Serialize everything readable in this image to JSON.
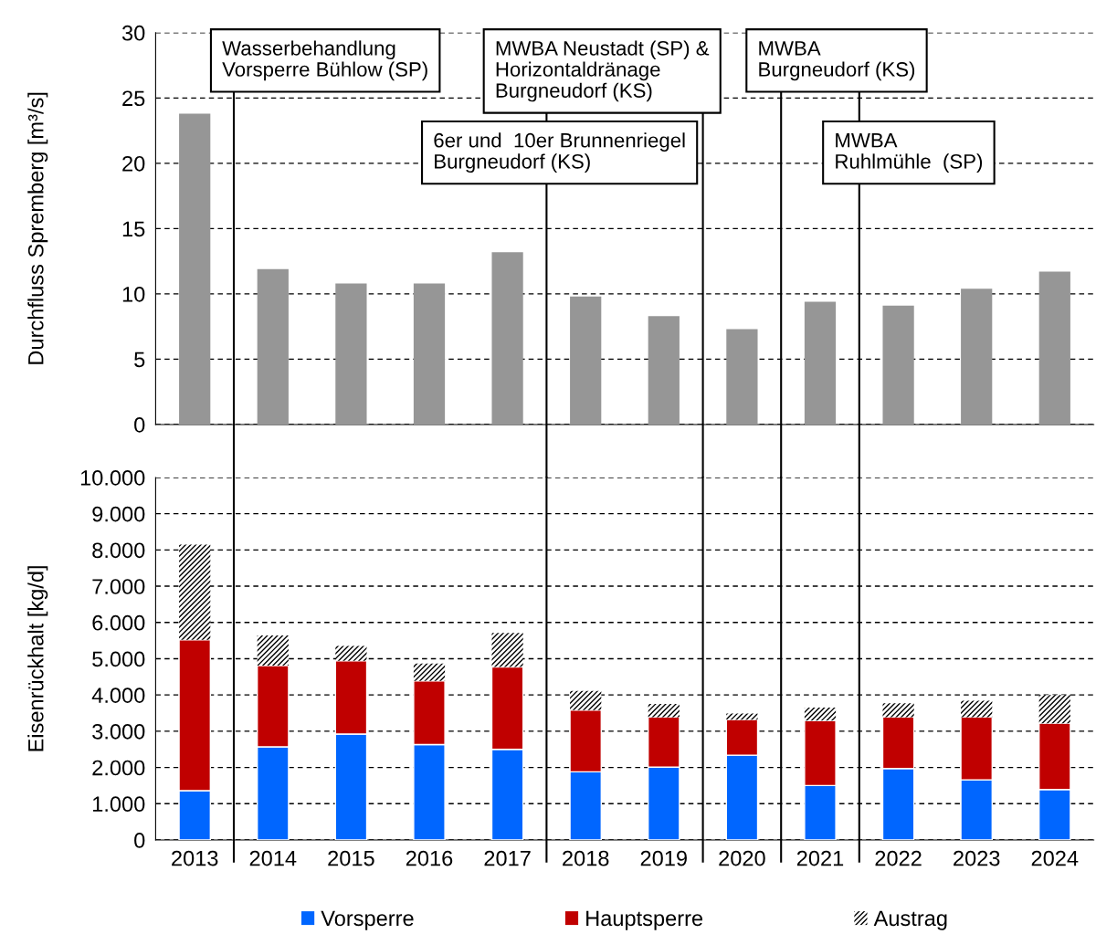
{
  "chart_data": [
    {
      "type": "bar",
      "ylabel": "Durchfluss Spremberg [m³/s]",
      "x": [
        2013,
        2014,
        2015,
        2016,
        2017,
        2018,
        2019,
        2020,
        2021,
        2022,
        2023,
        2024
      ],
      "xlim": [
        2012.5,
        2024.5
      ],
      "xticks": [
        2013,
        2014,
        2015,
        2016,
        2017,
        2018,
        2019,
        2020,
        2021,
        2022,
        2023,
        2024
      ],
      "values": [
        23.8,
        11.9,
        10.8,
        10.8,
        13.2,
        9.8,
        8.3,
        7.3,
        9.4,
        9.1,
        10.4,
        11.7
      ],
      "color": "#969696",
      "ylim": [
        0,
        30
      ],
      "yticks": [
        0,
        5,
        10,
        15,
        20,
        25,
        30
      ],
      "grid": "y",
      "tick_labels": "y",
      "ref_lines": [
        {
          "axis": "x",
          "value": 2013.5,
          "label": "Wasserbehandlung\nVorsperre Bühlow (SP)",
          "color": "#000000"
        },
        {
          "axis": "x",
          "value": 2017.5,
          "label": "6er und  10er Brunnenriegel\nBurgneudorf (KS)",
          "color": "#000000"
        },
        {
          "axis": "x",
          "value": 2019.5,
          "label": "MWBA Neustadt (SP) &\nHorizontaldränage\nBurgneudorf (KS)",
          "color": "#000000"
        },
        {
          "axis": "x",
          "value": 2020.5,
          "label": "MWBA\nBurgneudorf (KS)",
          "color": "#000000"
        },
        {
          "axis": "x",
          "value": 2021.5,
          "label": "MWBA\nRuhlmühle  (SP)",
          "color": "#000000"
        }
      ]
    },
    {
      "type": "bar",
      "stacked": true,
      "ylabel": "Eisenrückhalt [kg/d]",
      "x": [
        2013,
        2014,
        2015,
        2016,
        2017,
        2018,
        2019,
        2020,
        2021,
        2022,
        2023,
        2024
      ],
      "xlim": [
        2012.5,
        2024.5
      ],
      "xticks": [
        2013,
        2014,
        2015,
        2016,
        2017,
        2018,
        2019,
        2020,
        2021,
        2022,
        2023,
        2024
      ],
      "series": [
        {
          "name": "Vorsperre",
          "color": "#0066ff",
          "values": [
            1360,
            2570,
            2920,
            2630,
            2500,
            1880,
            2010,
            2340,
            1500,
            1970,
            1660,
            1390
          ]
        },
        {
          "name": "Hauptsperre",
          "color": "#c00000",
          "values": [
            4160,
            2240,
            2020,
            1760,
            2270,
            1700,
            1380,
            980,
            1790,
            1420,
            1730,
            1830
          ]
        },
        {
          "name": "Austrag",
          "color": "#000000",
          "values": [
            2630,
            830,
            410,
            480,
            940,
            530,
            360,
            170,
            360,
            380,
            450,
            780
          ]
        }
      ],
      "ylim": [
        0,
        10000
      ],
      "yticks": [
        0,
        {
          "value": 1000,
          "label": "1.000"
        },
        {
          "value": 2000,
          "label": "2.000"
        },
        {
          "value": 3000,
          "label": "3.000"
        },
        {
          "value": 4000,
          "label": "4.000"
        },
        {
          "value": 5000,
          "label": "5.000"
        },
        {
          "value": 6000,
          "label": "6.000"
        },
        {
          "value": 7000,
          "label": "7.000"
        },
        {
          "value": 8000,
          "label": "8.000"
        },
        {
          "value": 9000,
          "label": "9.000"
        },
        {
          "value": 10000,
          "label": "10.000"
        }
      ],
      "grid": "y",
      "legend": "bottom",
      "ref_lines": [
        {
          "axis": "x",
          "value": 2013.5,
          "color": "#000000"
        },
        {
          "axis": "x",
          "value": 2017.5,
          "color": "#000000"
        },
        {
          "axis": "x",
          "value": 2019.5,
          "color": "#000000"
        },
        {
          "axis": "x",
          "value": 2020.5,
          "color": "#000000"
        },
        {
          "axis": "x",
          "value": 2021.5,
          "color": "#000000"
        }
      ]
    }
  ]
}
